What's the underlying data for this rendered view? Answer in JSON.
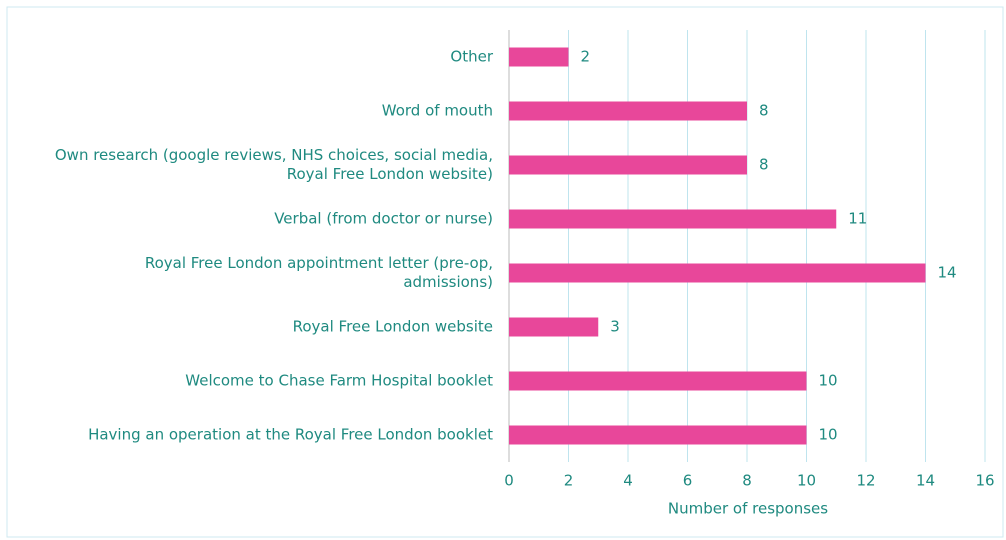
{
  "chart_data": {
    "type": "bar",
    "orientation": "horizontal",
    "categories": [
      "Other",
      "Word of mouth",
      [
        "Own research (google reviews, NHS choices, social media,",
        "Royal Free London website)"
      ],
      "Verbal (from doctor or nurse)",
      [
        "Royal Free London appointment letter (pre-op,",
        "admissions)"
      ],
      "Royal Free London website",
      "Welcome to Chase Farm Hospital booklet",
      "Having an operation at the Royal Free London booklet"
    ],
    "values": [
      2,
      8,
      8,
      11,
      14,
      3,
      10,
      10
    ],
    "color": "#e8479a",
    "xlabel": "Number of responses",
    "xlim": [
      0,
      16
    ],
    "xticks": [
      0,
      2,
      4,
      6,
      8,
      10,
      12,
      14,
      16
    ],
    "grid": true
  }
}
